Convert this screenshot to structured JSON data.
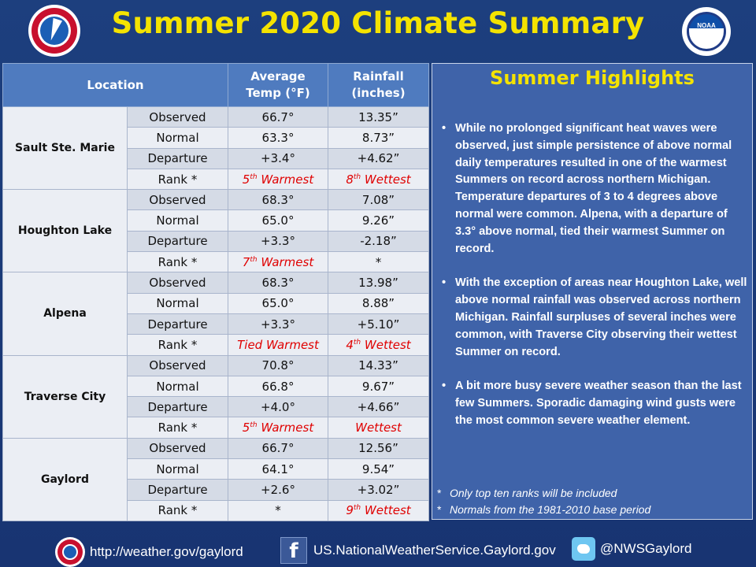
{
  "title": "Summer 2020 Climate Summary",
  "logos": {
    "left": "nws-logo",
    "right": "noaa-logo",
    "noaa_text": "NOAA"
  },
  "table": {
    "headers": {
      "location": "Location",
      "temp": "Average Temp (°F)",
      "temp_l1": "Average",
      "temp_l2": "Temp (°F)",
      "rain_l1": "Rainfall",
      "rain_l2": "(inches)"
    },
    "row_labels": [
      "Observed",
      "Normal",
      "Departure",
      "Rank *"
    ],
    "stations": [
      {
        "name": "Sault Ste. Marie",
        "temp": [
          "66.7°",
          "63.3°",
          "+3.4°"
        ],
        "rain": [
          "13.35”",
          "8.73”",
          "+4.62”"
        ],
        "temp_rank": {
          "num": "5",
          "sup": "th",
          "text": " Warmest"
        },
        "rain_rank": {
          "num": "8",
          "sup": "th",
          "text": " Wettest"
        }
      },
      {
        "name": "Houghton  Lake",
        "temp": [
          "68.3°",
          "65.0°",
          "+3.3°"
        ],
        "rain": [
          "7.08”",
          "9.26”",
          "-2.18”"
        ],
        "temp_rank": {
          "num": "7",
          "sup": "th",
          "text": " Warmest"
        },
        "rain_rank": {
          "num": "*",
          "sup": "",
          "text": ""
        }
      },
      {
        "name": "Alpena",
        "temp": [
          "68.3°",
          "65.0°",
          "+3.3°"
        ],
        "rain": [
          "13.98”",
          "8.88”",
          "+5.10”"
        ],
        "temp_rank": {
          "num": "Tied Warmest",
          "sup": "",
          "text": ""
        },
        "rain_rank": {
          "num": "4",
          "sup": "th",
          "text": " Wettest"
        }
      },
      {
        "name": "Traverse City",
        "temp": [
          "70.8°",
          "66.8°",
          "+4.0°"
        ],
        "rain": [
          "14.33”",
          "9.67”",
          "+4.66”"
        ],
        "temp_rank": {
          "num": "5",
          "sup": "th",
          "text": " Warmest"
        },
        "rain_rank": {
          "num": "Wettest",
          "sup": "",
          "text": ""
        }
      },
      {
        "name": "Gaylord",
        "temp": [
          "66.7°",
          "64.1°",
          "+2.6°"
        ],
        "rain": [
          "12.56”",
          "9.54”",
          "+3.02”"
        ],
        "temp_rank": {
          "num": "*",
          "sup": "",
          "text": ""
        },
        "rain_rank": {
          "num": "9",
          "sup": "th",
          "text": " Wettest"
        }
      }
    ],
    "colors": {
      "header": "#4f7bbf",
      "rank_red": "#e00000"
    }
  },
  "highlights": {
    "title": "Summer Highlights",
    "bullets": [
      "While no prolonged significant heat waves were observed, just simple persistence of above normal daily temperatures resulted in one of the warmest Summers on record across northern Michigan.  Temperature departures of 3 to 4 degrees above normal were common. Alpena, with a departure of 3.3° above normal, tied their warmest Summer on record.",
      "With the exception of areas near Houghton Lake, well above normal rainfall was observed across northern Michigan. Rainfall surpluses of several inches were common, with Traverse City observing their wettest Summer on record.",
      "A bit more busy severe weather season than the last few Summers. Sporadic damaging wind gusts were the most common severe weather element."
    ],
    "notes": [
      "Only top ten ranks will be included",
      "Normals from the 1981-2010 base period"
    ],
    "note_mark": "*",
    "colors": {
      "title": "#f4e300",
      "panel": "#3f63a9"
    }
  },
  "footer": {
    "website": "http://weather.gov/gaylord",
    "facebook": "US.NationalWeatherService.Gaylord.gov",
    "twitter": "@NWSGaylord",
    "icons": [
      "nws-logo",
      "facebook-icon",
      "twitter-icon"
    ]
  }
}
